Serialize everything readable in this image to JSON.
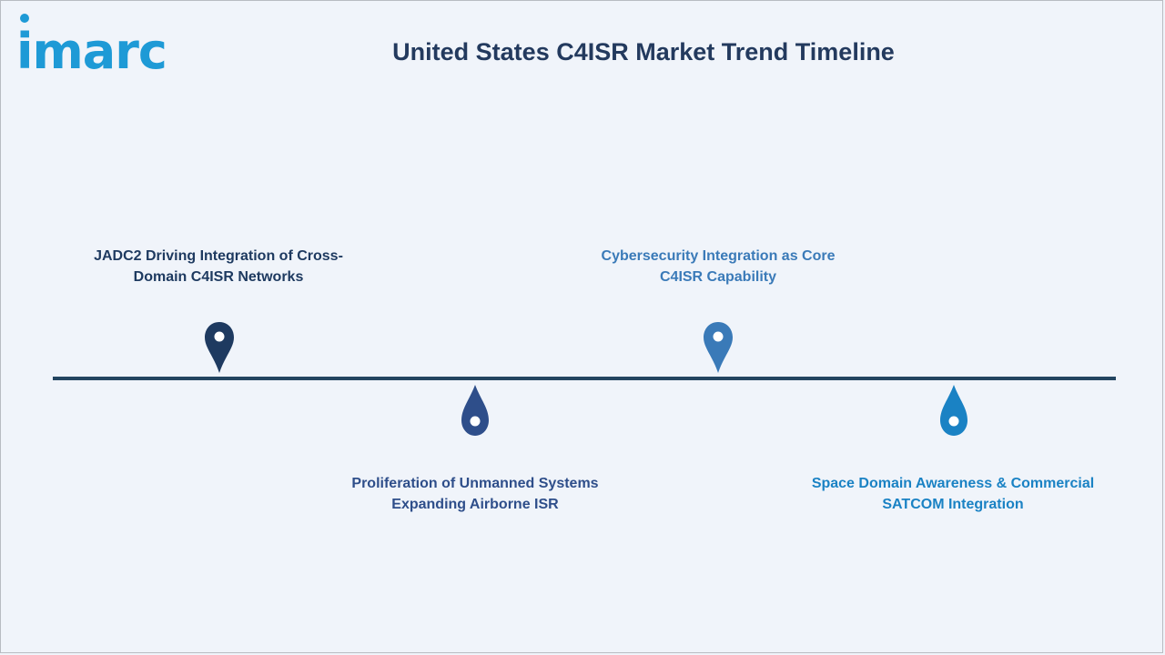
{
  "logo": {
    "text": "imarc",
    "color": "#1e9ad6"
  },
  "title": "United States C4ISR Market Trend Timeline",
  "colors": {
    "title": "#233a5e",
    "timeline": "#234560",
    "background": "#f0f4fa"
  },
  "timeline_events": [
    {
      "label": "JADC2 Driving Integration of Cross-Domain C4ISR Networks",
      "line1": "JADC2 Driving Integration of Cross-",
      "line2": "Domain C4ISR Networks",
      "position": "above",
      "color": "#1e3a60",
      "icon": "map-pin-icon"
    },
    {
      "label": "Proliferation of Unmanned Systems Expanding Airborne ISR",
      "line1": "Proliferation of Unmanned Systems",
      "line2": "Expanding Airborne ISR",
      "position": "below",
      "color": "#2e4e8a",
      "icon": "droplet-icon"
    },
    {
      "label": "Cybersecurity Integration as Core C4ISR Capability",
      "line1": "Cybersecurity Integration as Core",
      "line2": "C4ISR Capability",
      "position": "above",
      "color": "#3a7ab8",
      "icon": "map-pin-icon"
    },
    {
      "label": "Space Domain Awareness & Commercial SATCOM Integration",
      "line1": "Space Domain Awareness & Commercial",
      "line2": "SATCOM Integration",
      "position": "below",
      "color": "#1a82c4",
      "icon": "droplet-icon"
    }
  ]
}
